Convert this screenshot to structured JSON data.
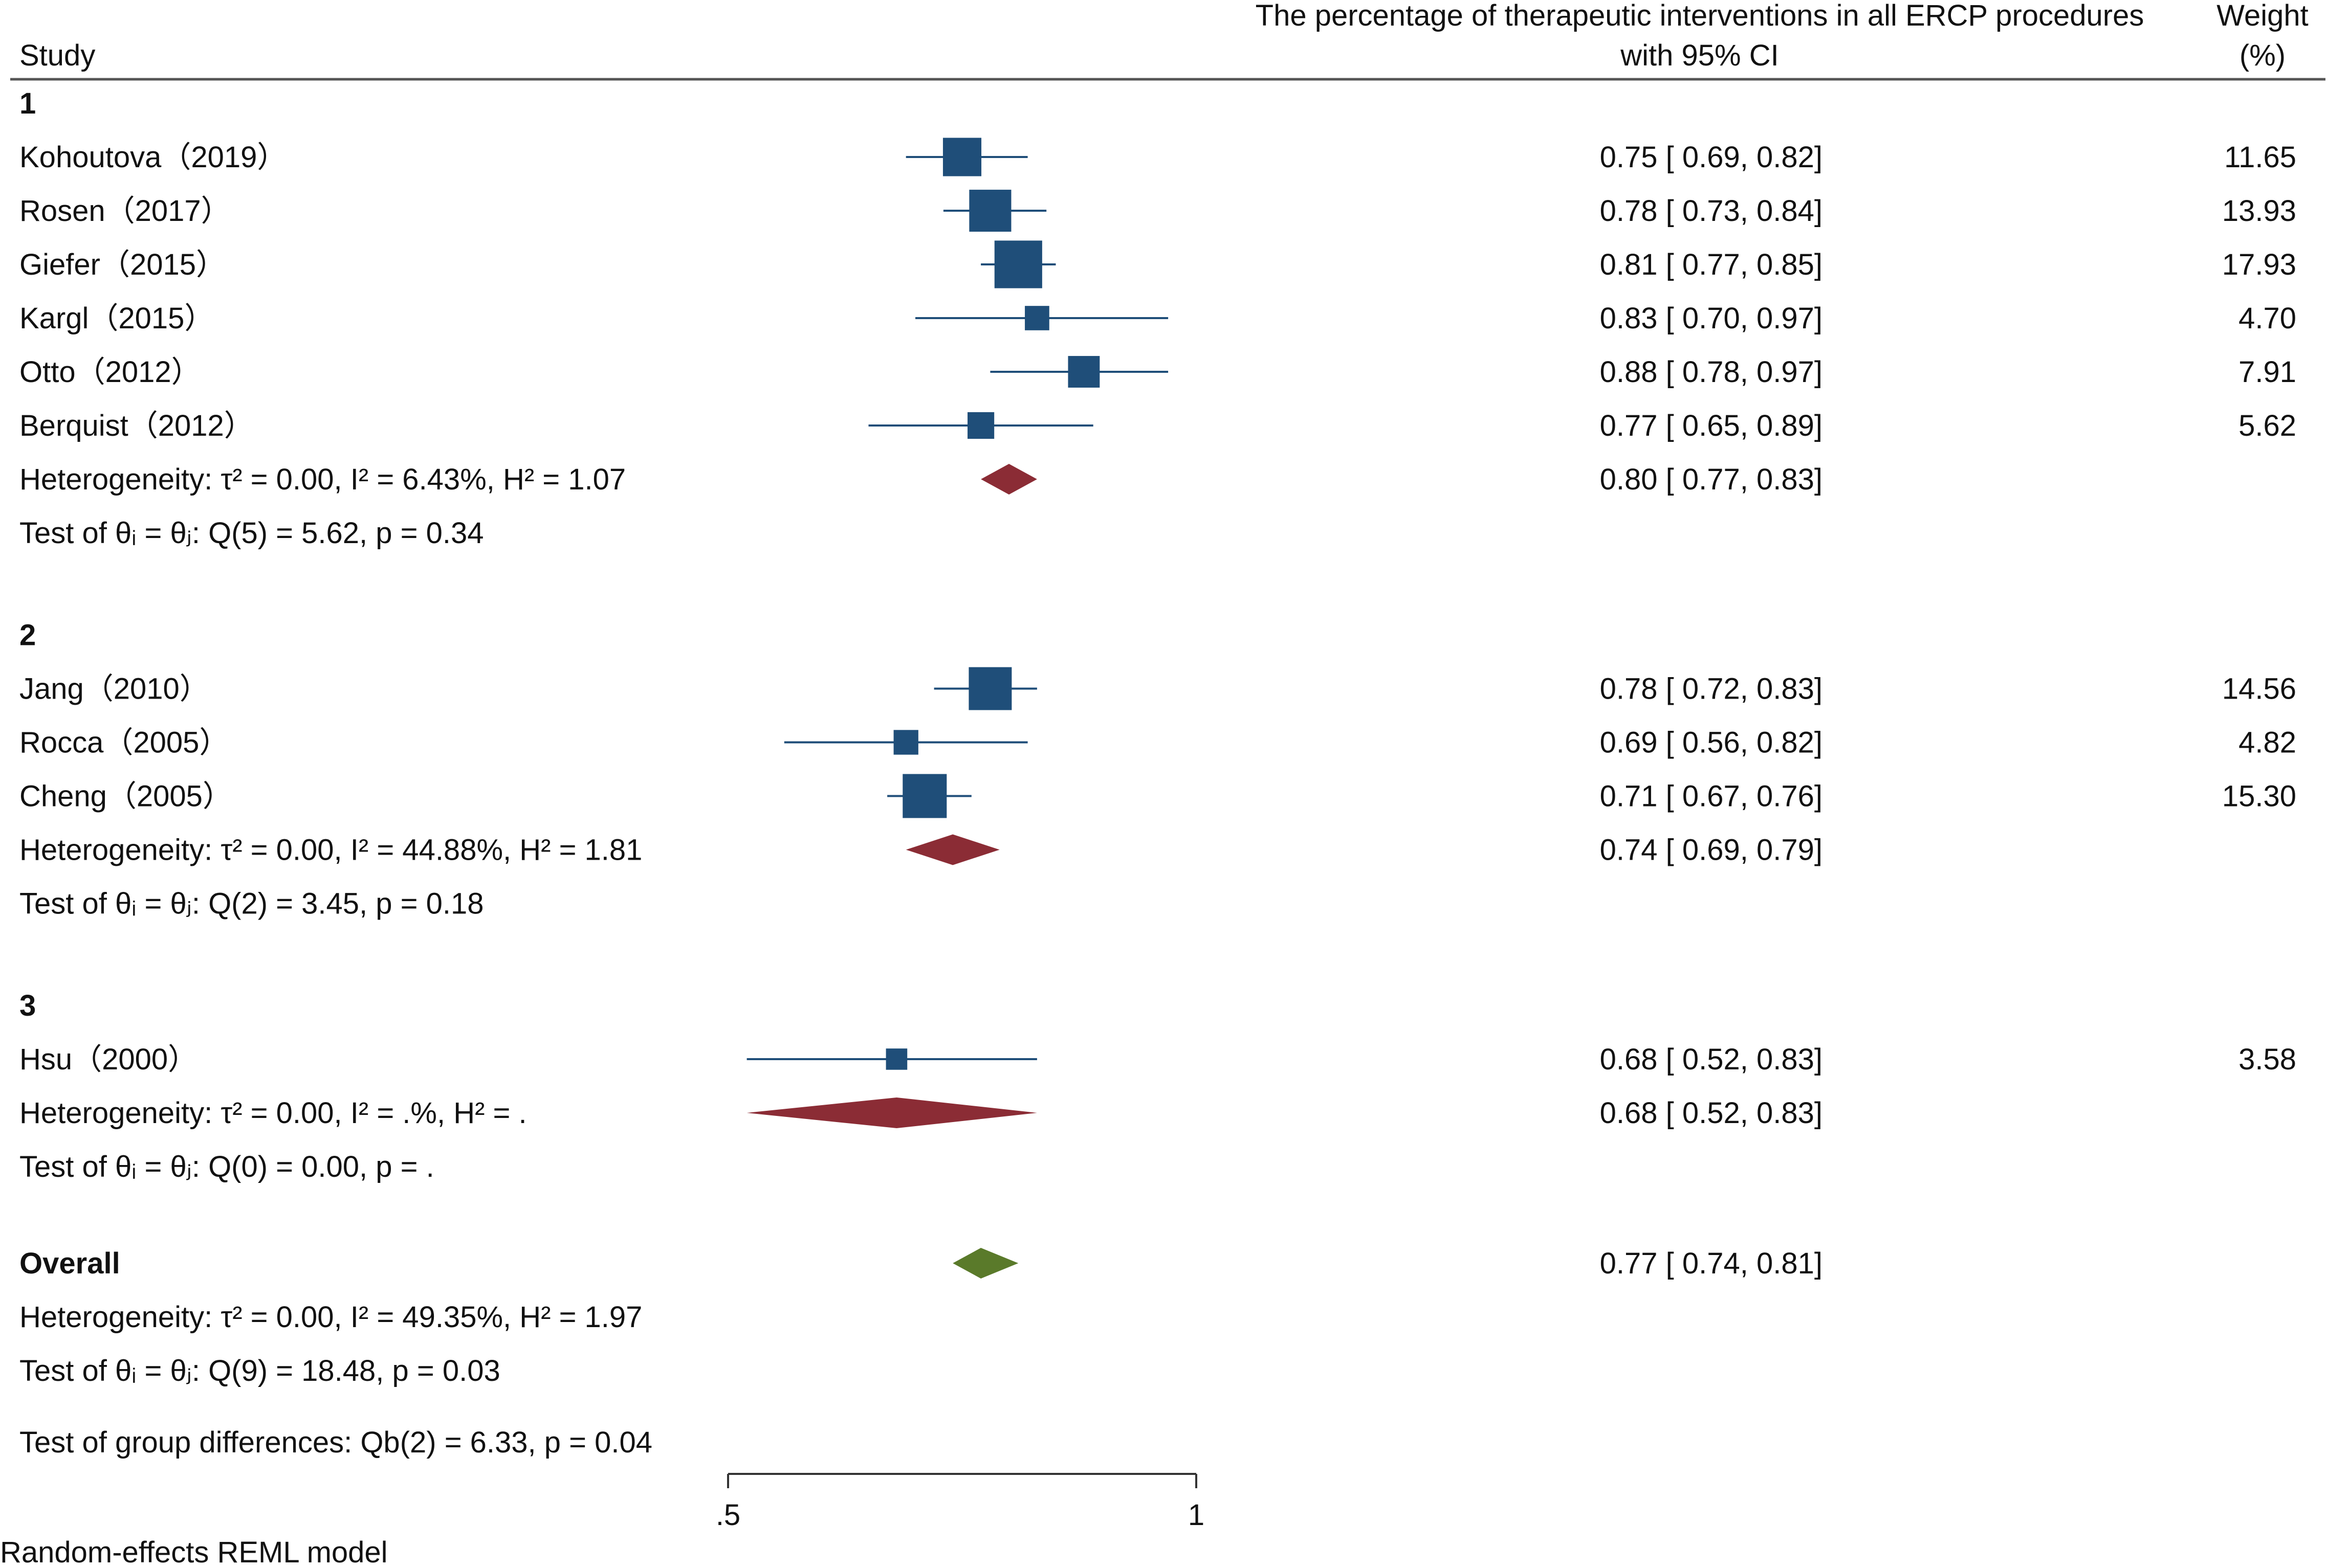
{
  "chart_data": {
    "type": "forest",
    "model_note": "Random-effects REML model",
    "columns": {
      "study": "Study",
      "effect_line1": "The percentage of therapeutic interventions in all ERCP procedures",
      "effect_line2": "with 95% CI",
      "weight_line1": "Weight",
      "weight_line2": "(%)"
    },
    "x_axis": {
      "range": [
        0.5,
        1.0
      ],
      "ticks": [
        0.5,
        1.0
      ],
      "tick_labels": [
        ".5",
        "1"
      ]
    },
    "colors": {
      "study_marker": "#1f4e79",
      "subgroup_diamond": "#8b2c35",
      "overall_diamond": "#5a7a2a",
      "line": "#1f4e79"
    },
    "groups": [
      {
        "label": "1",
        "studies": [
          {
            "name": "Kohoutova（2019）",
            "est": 0.75,
            "lo": 0.69,
            "hi": 0.82,
            "ci_text": "0.75 [  0.69,  0.82]",
            "weight": "11.65",
            "w": 11.65
          },
          {
            "name": "Rosen（2017）",
            "est": 0.78,
            "lo": 0.73,
            "hi": 0.84,
            "ci_text": "0.78 [  0.73,  0.84]",
            "weight": "13.93",
            "w": 13.93
          },
          {
            "name": "Giefer（2015）",
            "est": 0.81,
            "lo": 0.77,
            "hi": 0.85,
            "ci_text": "0.81 [  0.77,  0.85]",
            "weight": "17.93",
            "w": 17.93
          },
          {
            "name": "Kargl（2015）",
            "est": 0.83,
            "lo": 0.7,
            "hi": 0.97,
            "ci_text": "0.83 [  0.70,  0.97]",
            "weight": "4.70",
            "w": 4.7
          },
          {
            "name": "Otto（2012）",
            "est": 0.88,
            "lo": 0.78,
            "hi": 0.97,
            "ci_text": "0.88 [  0.78,  0.97]",
            "weight": "7.91",
            "w": 7.91
          },
          {
            "name": "Berquist（2012）",
            "est": 0.77,
            "lo": 0.65,
            "hi": 0.89,
            "ci_text": "0.77 [  0.65,  0.89]",
            "weight": "5.62",
            "w": 5.62
          }
        ],
        "summary": {
          "heterogeneity": "Heterogeneity: τ² = 0.00, I² = 6.43%, H² = 1.07",
          "est": 0.8,
          "lo": 0.77,
          "hi": 0.83,
          "ci_text": "0.80 [  0.77,  0.83]"
        },
        "test": "Test of θᵢ = θⱼ: Q(5) = 5.62, p = 0.34"
      },
      {
        "label": "2",
        "studies": [
          {
            "name": "Jang（2010）",
            "est": 0.78,
            "lo": 0.72,
            "hi": 0.83,
            "ci_text": "0.78 [  0.72,  0.83]",
            "weight": "14.56",
            "w": 14.56
          },
          {
            "name": "Rocca（2005）",
            "est": 0.69,
            "lo": 0.56,
            "hi": 0.82,
            "ci_text": "0.69 [  0.56,  0.82]",
            "weight": "4.82",
            "w": 4.82
          },
          {
            "name": "Cheng（2005）",
            "est": 0.71,
            "lo": 0.67,
            "hi": 0.76,
            "ci_text": "0.71 [  0.67,  0.76]",
            "weight": "15.30",
            "w": 15.3
          }
        ],
        "summary": {
          "heterogeneity": "Heterogeneity: τ² = 0.00, I² = 44.88%, H² = 1.81",
          "est": 0.74,
          "lo": 0.69,
          "hi": 0.79,
          "ci_text": "0.74 [  0.69,  0.79]"
        },
        "test": "Test of θᵢ = θⱼ: Q(2) = 3.45, p = 0.18"
      },
      {
        "label": "3",
        "studies": [
          {
            "name": "Hsu（2000）",
            "est": 0.68,
            "lo": 0.52,
            "hi": 0.83,
            "ci_text": "0.68 [  0.52,  0.83]",
            "weight": "3.58",
            "w": 3.58
          }
        ],
        "summary": {
          "heterogeneity": "Heterogeneity: τ² = 0.00, I² = .%, H² = .",
          "est": 0.68,
          "lo": 0.52,
          "hi": 0.83,
          "ci_text": "0.68 [  0.52,  0.83]"
        },
        "test": "Test of θᵢ = θⱼ: Q(0) = 0.00, p = ."
      }
    ],
    "overall": {
      "label": "Overall",
      "est": 0.77,
      "lo": 0.74,
      "hi": 0.81,
      "ci_text": "0.77 [  0.74,  0.81]",
      "heterogeneity": "Heterogeneity: τ² = 0.00, I² = 49.35%, H² = 1.97",
      "test": "Test of θᵢ = θⱼ: Q(9) = 18.48, p = 0.03"
    },
    "group_diff_test": "Test of group differences: Qb(2) = 6.33, p = 0.04"
  }
}
